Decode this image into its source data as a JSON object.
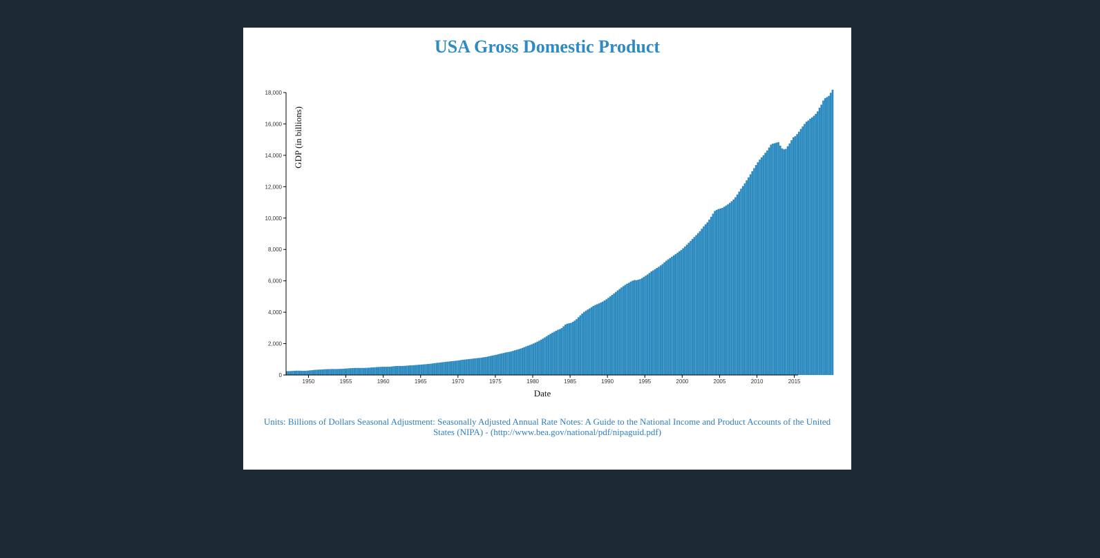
{
  "page": {
    "background": "#1c2b33",
    "card_background": "#ffffff",
    "title": "USA Gross Domestic Product",
    "notes": "Units: Billions of Dollars Seasonal Adjustment: Seasonally Adjusted Annual Rate Notes: A Guide to the National Income and Product Accounts of the United States (NIPA) - (http://www.bea.gov/national/pdf/nipaguid.pdf)",
    "colors": {
      "title": "#2e8ac3",
      "notes": "#2e7fc0",
      "bars": "#2e8bc0"
    }
  },
  "chart_data": {
    "type": "bar",
    "title": "USA Gross Domestic Product",
    "xlabel": "Date",
    "ylabel": "GDP (in billions)",
    "xlim": [
      1947.0,
      2015.5
    ],
    "ylim": [
      0,
      18000
    ],
    "yticks": [
      0,
      2000,
      4000,
      6000,
      8000,
      10000,
      12000,
      14000,
      16000,
      18000
    ],
    "yticklabels": [
      "0",
      "2,000",
      "4,000",
      "6,000",
      "8,000",
      "10,000",
      "12,000",
      "14,000",
      "16,000",
      "18,000"
    ],
    "xticks": [
      1950,
      1955,
      1960,
      1965,
      1970,
      1975,
      1980,
      1985,
      1990,
      1995,
      2000,
      2005,
      2010,
      2015
    ],
    "xticklabels": [
      "1950",
      "1955",
      "1960",
      "1965",
      "1970",
      "1975",
      "1980",
      "1985",
      "1990",
      "1995",
      "2000",
      "2005",
      "2010",
      "2015"
    ],
    "grid": false,
    "legend": "none",
    "series": [
      {
        "frequency": "quarterly",
        "start": "1947-Q1",
        "values": [
          243,
          246,
          249,
          259,
          266,
          273,
          275,
          271,
          267,
          265,
          270,
          277,
          290,
          303,
          317,
          328,
          336,
          342,
          347,
          353,
          366,
          368,
          374,
          377,
          382,
          381,
          379,
          380,
          387,
          391,
          398,
          407,
          414,
          425,
          434,
          440,
          446,
          449,
          452,
          448,
          451,
          449,
          453,
          458,
          467,
          476,
          484,
          492,
          502,
          511,
          518,
          524,
          526,
          523,
          524,
          528,
          543,
          556,
          566,
          573,
          576,
          574,
          578,
          584,
          592,
          603,
          612,
          618,
          626,
          637,
          648,
          655,
          664,
          677,
          685,
          697,
          708,
          721,
          739,
          752,
          770,
          781,
          797,
          812,
          825,
          839,
          852,
          865,
          879,
          891,
          903,
          917,
          933,
          952,
          970,
          983,
          996,
          1007,
          1021,
          1034,
          1052,
          1064,
          1077,
          1088,
          1106,
          1123,
          1142,
          1160,
          1190,
          1216,
          1244,
          1264,
          1288,
          1317,
          1352,
          1378,
          1402,
          1435,
          1458,
          1472,
          1502,
          1537,
          1575,
          1610,
          1645,
          1683,
          1727,
          1774,
          1824,
          1865,
          1913,
          1958,
          2011,
          2063,
          2125,
          2187,
          2252,
          2322,
          2397,
          2470,
          2550,
          2621,
          2689,
          2754,
          2817,
          2880,
          2923,
          2988,
          3101,
          3215,
          3268,
          3297,
          3321,
          3385,
          3464,
          3561,
          3681,
          3802,
          3916,
          4019,
          4097,
          4173,
          4248,
          4327,
          4400,
          4464,
          4513,
          4564,
          4621,
          4680,
          4752,
          4830,
          4920,
          5010,
          5105,
          5198,
          5293,
          5389,
          5483,
          5575,
          5663,
          5746,
          5817,
          5878,
          5955,
          6013,
          6049,
          6039,
          6072,
          6107,
          6176,
          6256,
          6331,
          6406,
          6502,
          6599,
          6670,
          6747,
          6823,
          6898,
          6983,
          7070,
          7180,
          7283,
          7369,
          7454,
          7540,
          7624,
          7709,
          7795,
          7878,
          7963,
          8076,
          8187,
          8305,
          8427,
          8547,
          8669,
          8793,
          8914,
          9038,
          9163,
          9320,
          9470,
          9603,
          9730,
          9903,
          10082,
          10281,
          10456,
          10528,
          10578,
          10610,
          10648,
          10722,
          10800,
          10880,
          10972,
          11071,
          11184,
          11330,
          11500,
          11688,
          11871,
          12040,
          12214,
          12404,
          12595,
          12789,
          12988,
          13183,
          13377,
          13560,
          13724,
          13870,
          14002,
          14160,
          14310,
          14493,
          14678,
          14746,
          14770,
          14810,
          14840,
          14617,
          14440,
          14380,
          14410,
          14580,
          14760,
          14960,
          15150,
          15220,
          15350,
          15500,
          15680,
          15840,
          16000,
          16140,
          16220,
          16330,
          16420,
          16520,
          16640,
          16800,
          17030,
          17230,
          17490,
          17640,
          17710,
          17790,
          17980,
          18180
        ]
      }
    ]
  }
}
